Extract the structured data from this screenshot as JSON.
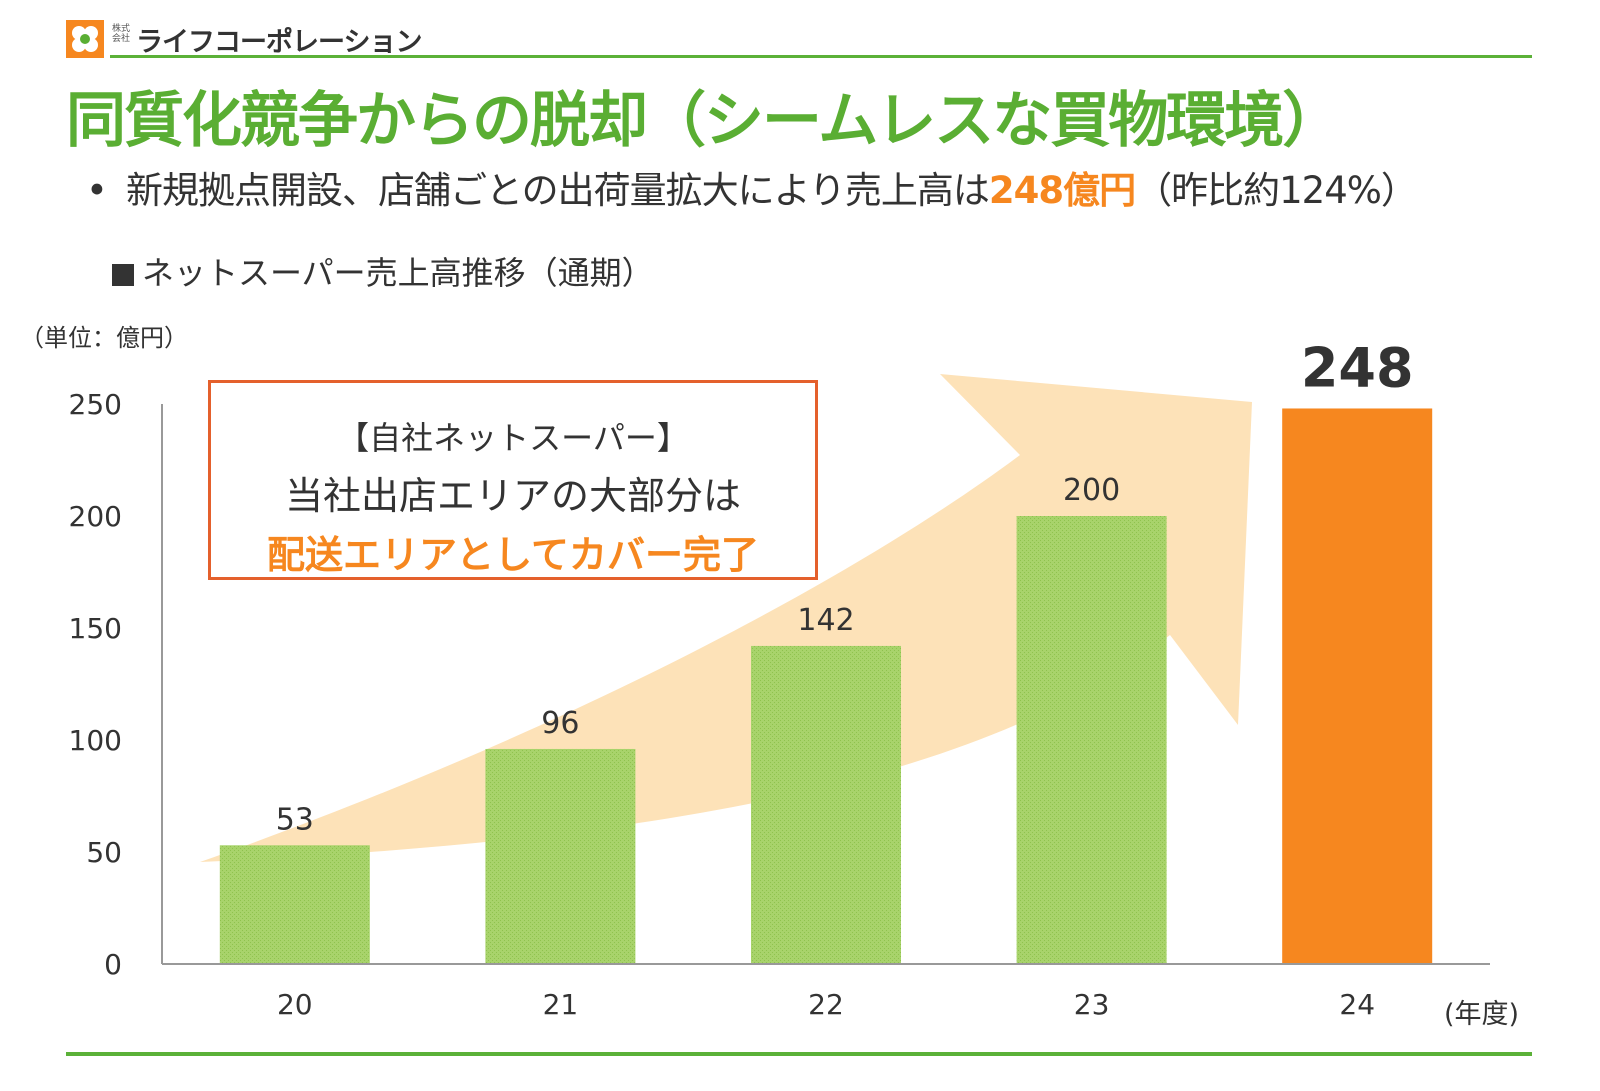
{
  "header": {
    "company_small": "株式会社",
    "company_name": "ライフコーポレーション"
  },
  "title": "同質化競争からの脱却（シームレスな買物環境）",
  "bullet": {
    "text_before": "新規拠点開設、店舗ごとの出荷量拡大により売上高は",
    "highlight": "248億円",
    "text_after": "（昨比約124%）"
  },
  "section_title": "ネットスーパー売上高推移（通期）",
  "unit_label": "（単位：億円）",
  "x_unit_label": "(年度)",
  "callout": {
    "line1": "【自社ネットスーパー】",
    "line2": "当社出店エリアの大部分は",
    "line3": "配送エリアとしてカバー完了"
  },
  "colors": {
    "brand_green": "#5aae33",
    "accent_orange": "#f6871f",
    "bar_green": "#a8d36b",
    "arrow_peach": "#fde2b8",
    "callout_border": "#e4602c"
  },
  "chart_data": {
    "type": "bar",
    "categories": [
      "20",
      "21",
      "22",
      "23",
      "24"
    ],
    "values": [
      53,
      96,
      142,
      200,
      248
    ],
    "data_labels": [
      "53",
      "96",
      "142",
      "200",
      "248"
    ],
    "highlight_index": 4,
    "ylim": [
      0,
      250
    ],
    "yticks": [
      "0",
      "50",
      "100",
      "150",
      "200",
      "250"
    ],
    "xlabel": "(年度)",
    "ylabel": "（単位：億円）",
    "grid": false,
    "legend": "none"
  }
}
